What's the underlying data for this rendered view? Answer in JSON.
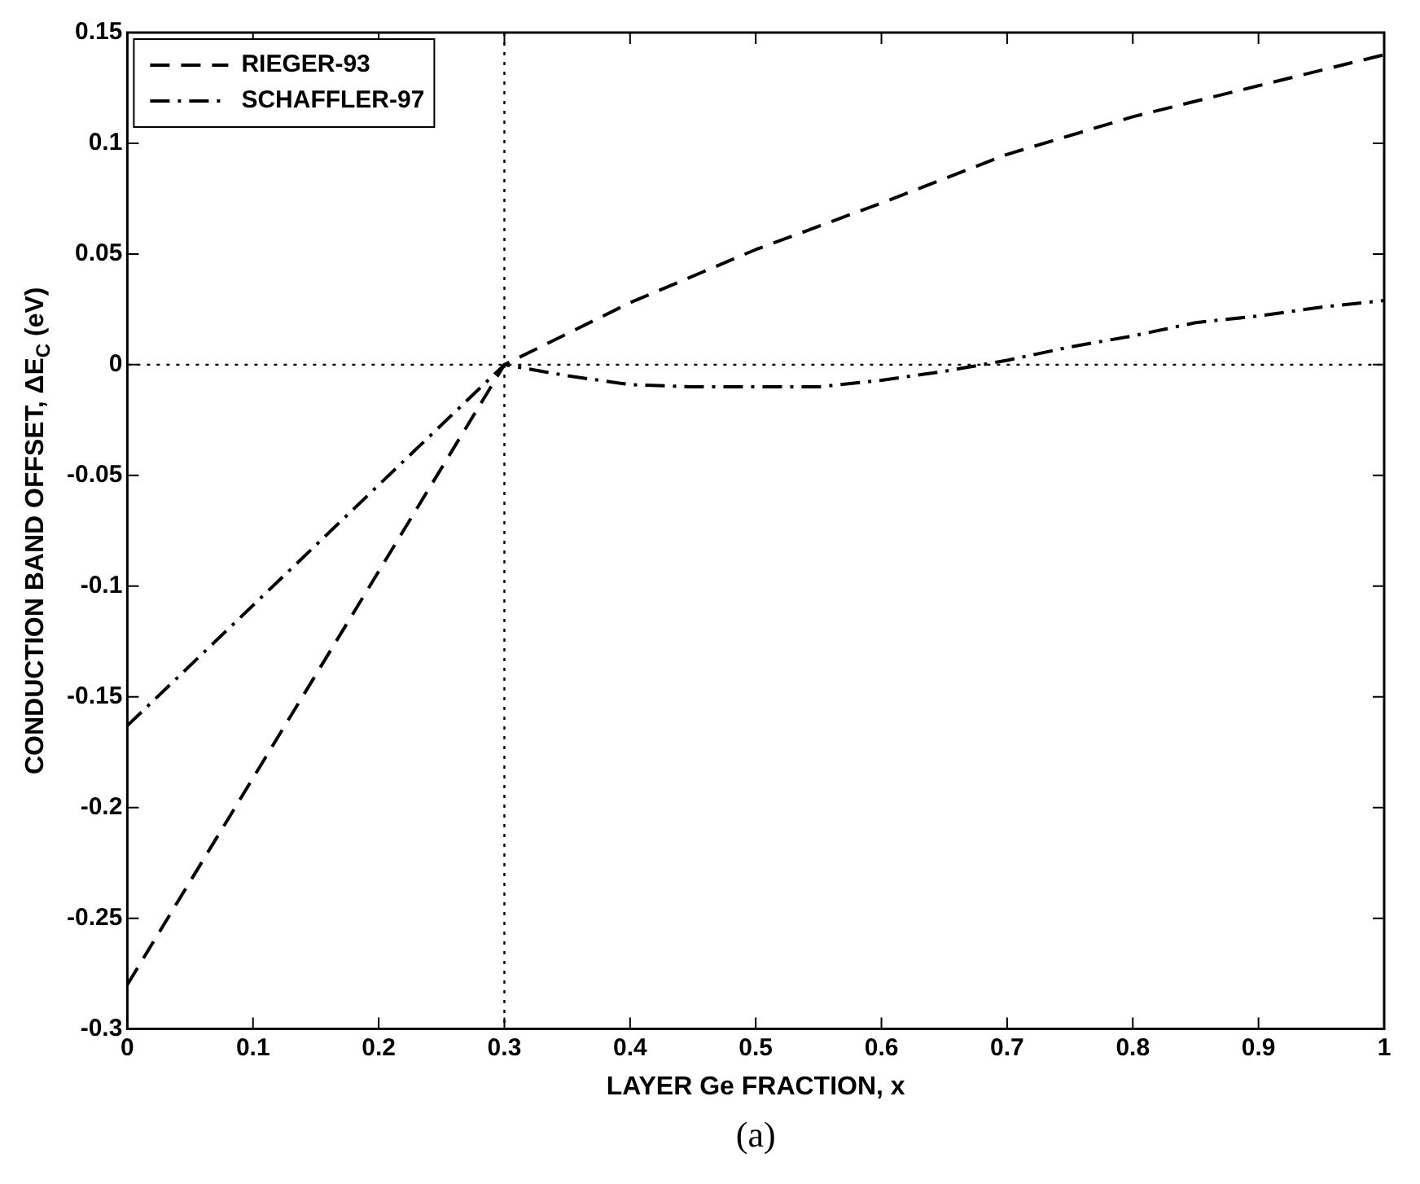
{
  "chart_data": {
    "type": "line",
    "xlabel": "LAYER Ge FRACTION, x",
    "ylabel": "CONDUCTION BAND OFFSET, ΔE$_{C}$ (eV)",
    "xlim": [
      0,
      1
    ],
    "xticks": [
      0,
      0.1,
      0.2,
      0.3,
      0.4,
      0.5,
      0.6,
      0.7,
      0.8,
      0.9,
      1
    ],
    "ylim": [
      -0.3,
      0.15
    ],
    "yticks": [
      -0.3,
      -0.25,
      -0.2,
      -0.15,
      -0.1,
      -0.05,
      0,
      0.05,
      0.1,
      0.15
    ],
    "grid": false,
    "legend": "top left",
    "marker": "none",
    "series": [
      {
        "name": "RIEGER-93",
        "color": "#000000",
        "line_style": "dashed",
        "x": [
          0,
          0.3,
          0.4,
          0.5,
          0.6,
          0.7,
          0.8,
          0.9,
          1
        ],
        "values": [
          -0.28,
          0,
          0.028,
          0.052,
          0.073,
          0.095,
          0.112,
          0.126,
          0.14
        ]
      },
      {
        "name": "SCHAFFLER-97",
        "color": "#000000",
        "line_style": "dashdot",
        "x": [
          0,
          0.3,
          0.35,
          0.4,
          0.45,
          0.5,
          0.55,
          0.6,
          0.65,
          0.7,
          0.75,
          0.8,
          0.85,
          0.9,
          0.95,
          1
        ],
        "values": [
          -0.163,
          0,
          -0.005,
          -0.009,
          -0.01,
          -0.01,
          -0.01,
          -0.007,
          -0.003,
          0.002,
          0.008,
          0.013,
          0.019,
          0.022,
          0.026,
          0.029
        ]
      }
    ],
    "ref_lines": [
      {
        "axis": "x",
        "value": 0.3,
        "line_style": "dotted",
        "color": "#000000"
      },
      {
        "axis": "y",
        "value": 0,
        "line_style": "dotted",
        "color": "#000000"
      }
    ],
    "annotations": [
      "(a)"
    ]
  }
}
